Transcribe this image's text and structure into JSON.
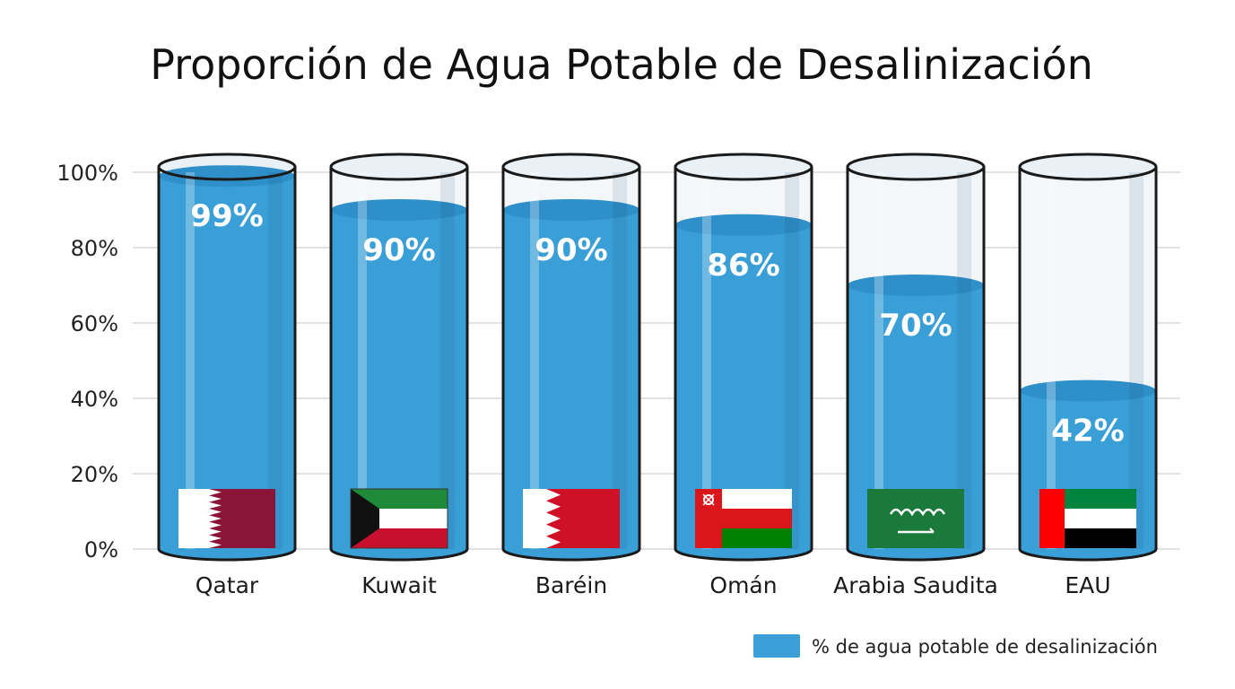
{
  "chart_data": {
    "type": "bar",
    "title": "Proporción de Agua Potable de Desalinización",
    "categories": [
      "Qatar",
      "Kuwait",
      "Baréin",
      "Omán",
      "Arabia Saudita",
      "EAU"
    ],
    "series": [
      {
        "name": "% de agua potable de desalinización",
        "values": [
          99,
          90,
          90,
          86,
          70,
          42
        ],
        "value_labels": [
          "99%",
          "90%",
          "90%",
          "86%",
          "70%",
          "42%"
        ]
      }
    ],
    "flags": [
      "qatar-flag-icon",
      "kuwait-flag-icon",
      "bahrain-flag-icon",
      "oman-flag-icon",
      "saudi-arabia-flag-icon",
      "uae-flag-icon"
    ],
    "ylim": [
      0,
      100
    ],
    "yticks": [
      0,
      20,
      40,
      60,
      80,
      100
    ],
    "ytick_labels": [
      "0%",
      "20%",
      "40%",
      "60%",
      "80%",
      "100%"
    ],
    "grid": true,
    "legend_position": "bottom-right",
    "colors": {
      "water": "#3a9fd6",
      "water_top": "#2f8fc9",
      "cylinder_outline": "#1a1a1a",
      "grid": "#d9d9d9"
    }
  }
}
